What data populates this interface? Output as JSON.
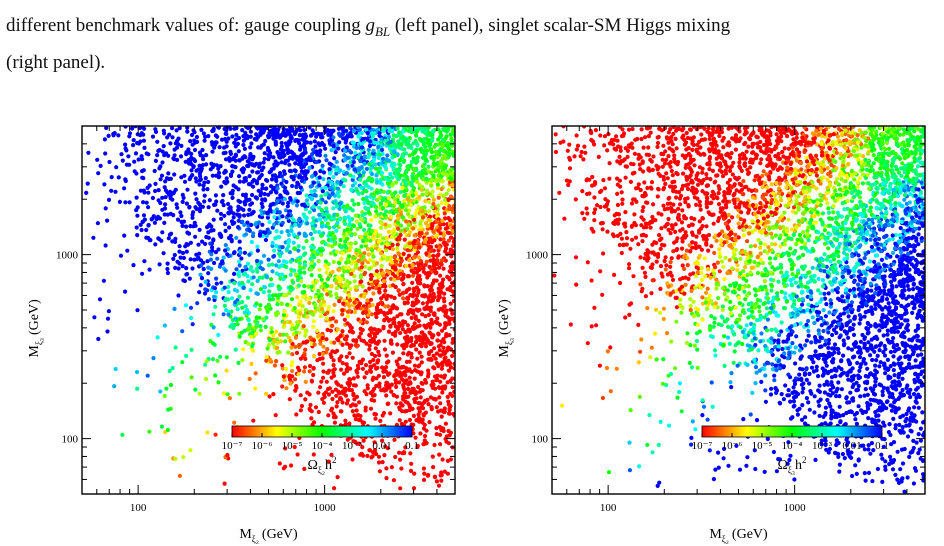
{
  "caption": {
    "line1": "different benchmark values of: gauge coupling",
    "g_symbol": "g",
    "g_subscript": "BL",
    "line1_mid": "(left panel), singlet scalar-SM Higgs mixing",
    "line2": "(right panel)."
  },
  "chart_data": [
    {
      "type": "scatter",
      "panel": "left",
      "xlabel": "M",
      "xlabel_sub": "ξ₂",
      "xlabel_unit": "(GeV)",
      "ylabel": "M",
      "ylabel_sub": "ξ₃",
      "ylabel_unit": "(GeV)",
      "x_scale": "log",
      "y_scale": "log",
      "xlim": [
        50,
        5000
      ],
      "ylim": [
        50,
        5000
      ],
      "xticks": [
        "100",
        "1000"
      ],
      "yticks": [
        "100",
        "1000"
      ],
      "colorbar": {
        "label": "Ω",
        "label_sub": "ξ₂",
        "label_tail": "h",
        "label_sup": "2",
        "scale": "log",
        "range": [
          1e-07,
          0.1
        ],
        "ticklabels": [
          "10⁻⁷",
          "10⁻⁶",
          "10⁻⁵",
          "10⁻⁴",
          "10⁻³",
          "0.01",
          "0.1"
        ],
        "colors": [
          "#ff0000",
          "#ffff00",
          "#00ff00",
          "#00ffff",
          "#0000ff"
        ],
        "position": "bottom-center inset"
      },
      "pattern": "relic density rises (blue) above the diagonal toward large M_ξ3 and falls (red) below it; dense red region at large M_ξ2"
    },
    {
      "type": "scatter",
      "panel": "right",
      "xlabel": "M",
      "xlabel_sub": "ξ₂",
      "xlabel_unit": "(GeV)",
      "ylabel": "M",
      "ylabel_sub": "ξ₃",
      "ylabel_unit": "(GeV)",
      "x_scale": "log",
      "y_scale": "log",
      "xlim": [
        50,
        5000
      ],
      "ylim": [
        50,
        5000
      ],
      "xticks": [
        "100",
        "1000"
      ],
      "yticks": [
        "100",
        "1000"
      ],
      "colorbar": {
        "label": "Ω",
        "label_sub": "ξ₃",
        "label_tail": "h",
        "label_sup": "2",
        "scale": "log",
        "range": [
          1e-07,
          0.1
        ],
        "ticklabels": [
          "10⁻⁷",
          "10⁻⁶",
          "10⁻⁵",
          "10⁻⁴",
          "10⁻³",
          "0.01",
          "0.1"
        ],
        "colors": [
          "#ff0000",
          "#ffff00",
          "#00ff00",
          "#00ffff",
          "#0000ff"
        ],
        "position": "bottom-center inset"
      },
      "pattern": "mirror of left panel: red above the diagonal, blue below it toward large M_ξ2"
    }
  ]
}
